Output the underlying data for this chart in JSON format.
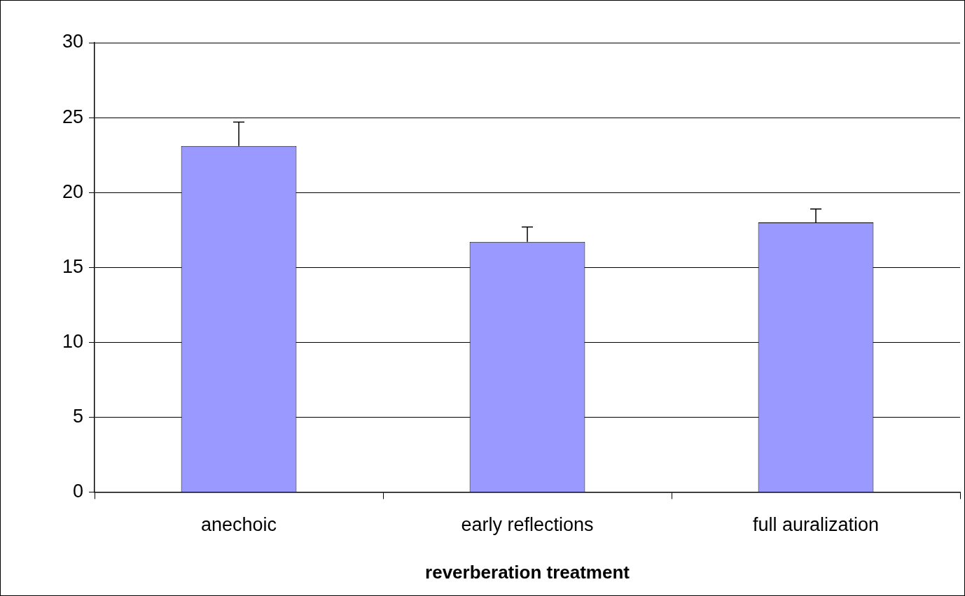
{
  "chart_data": {
    "type": "bar",
    "xlabel": "reverberation treatment",
    "categories": [
      "anechoic",
      "early reflections",
      "full auralization"
    ],
    "values": [
      23.1,
      16.7,
      18.0
    ],
    "color": "#9999ff",
    "errors": [
      [
        23.1,
        24.7
      ],
      [
        16.7,
        17.7
      ],
      [
        18.0,
        18.9
      ]
    ],
    "ylim": [
      0,
      30
    ],
    "yticks": [
      0,
      5,
      10,
      15,
      20,
      25,
      30
    ],
    "grid": "y",
    "legend": false
  }
}
